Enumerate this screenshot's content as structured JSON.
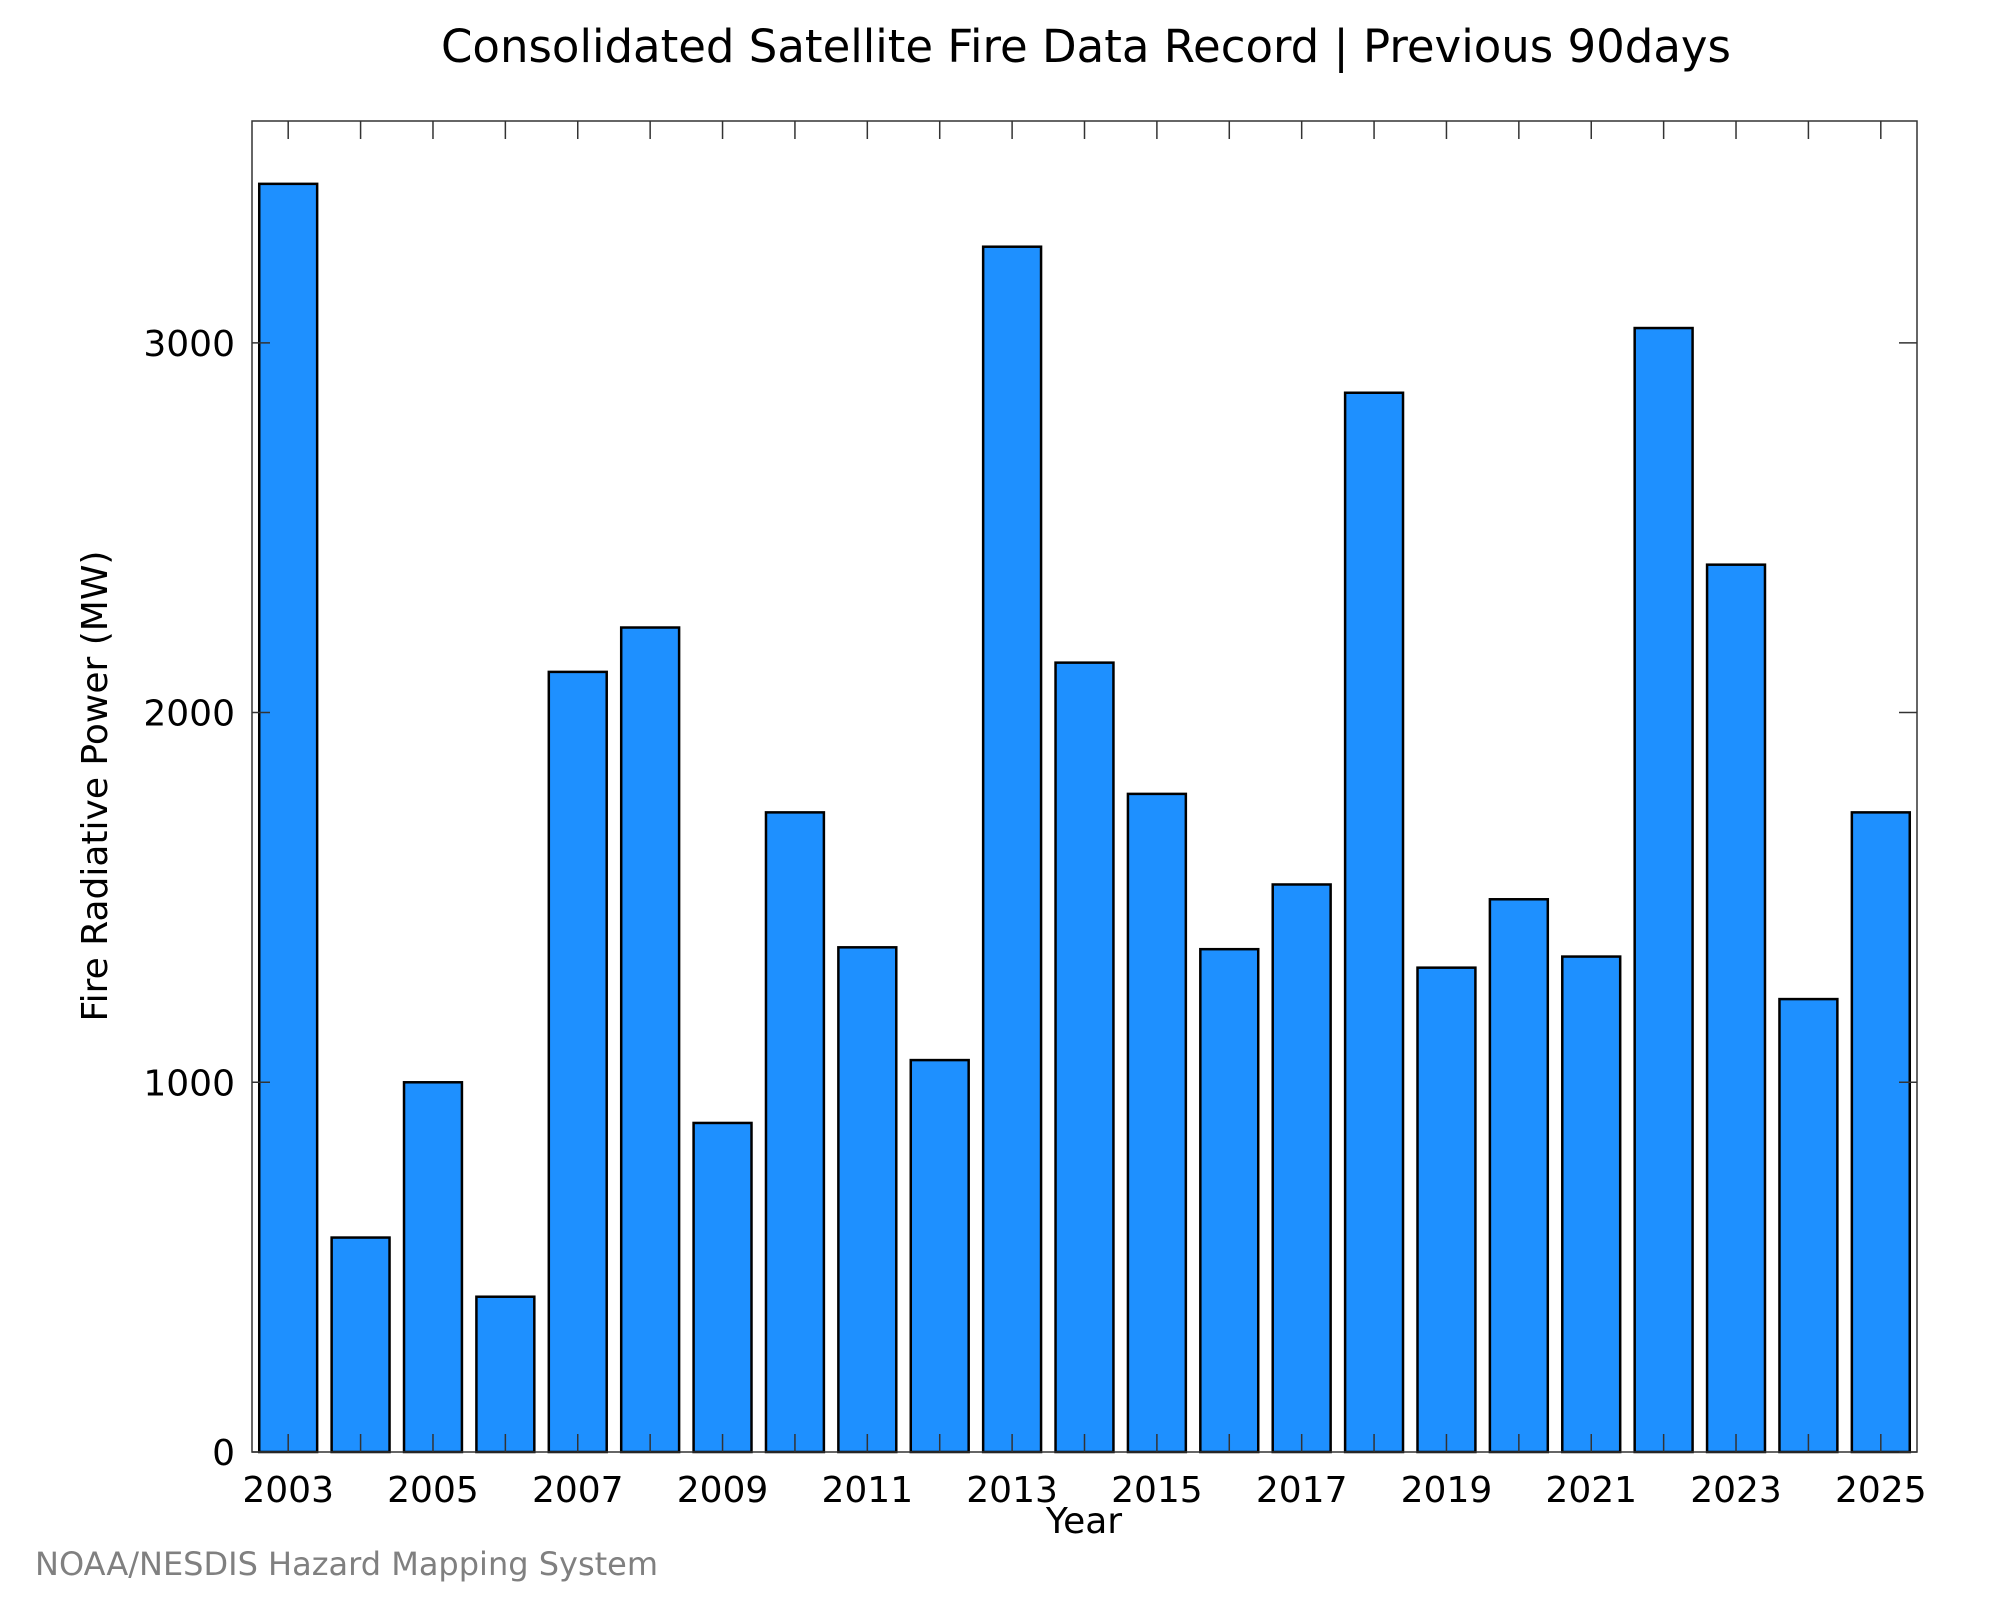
{
  "chart_data": {
    "type": "bar",
    "title": "Consolidated Satellite Fire Data Record | Previous 90days",
    "xlabel": "Year",
    "ylabel": "Fire Radiative Power (MW)",
    "credit": "NOAA/NESDIS Hazard Mapping System",
    "bar_color": "#1E90FF",
    "edge_color": "#000000",
    "grid": false,
    "ylim": [
      0,
      3600
    ],
    "xlim": [
      2002.5,
      2025.5
    ],
    "yticks": [
      0,
      1000,
      2000,
      3000
    ],
    "xticks_minor": [
      2003,
      2004,
      2005,
      2006,
      2007,
      2008,
      2009,
      2010,
      2011,
      2012,
      2013,
      2014,
      2015,
      2016,
      2017,
      2018,
      2019,
      2020,
      2021,
      2022,
      2023,
      2024,
      2025
    ],
    "xtick_labels": [
      "2003",
      "2005",
      "2007",
      "2009",
      "2011",
      "2013",
      "2015",
      "2017",
      "2019",
      "2021",
      "2023",
      "2025"
    ],
    "xtick_label_values": [
      2003,
      2005,
      2007,
      2009,
      2011,
      2013,
      2015,
      2017,
      2019,
      2021,
      2023,
      2025
    ],
    "categories": [
      2003,
      2004,
      2005,
      2006,
      2007,
      2008,
      2009,
      2010,
      2011,
      2012,
      2013,
      2014,
      2015,
      2016,
      2017,
      2018,
      2019,
      2020,
      2021,
      2022,
      2023,
      2024,
      2025
    ],
    "values": [
      3430,
      580,
      1000,
      420,
      2110,
      2230,
      890,
      1730,
      1365,
      1060,
      3260,
      2135,
      1780,
      1360,
      1535,
      2865,
      1310,
      1495,
      1340,
      3040,
      2400,
      1225,
      1730
    ]
  }
}
